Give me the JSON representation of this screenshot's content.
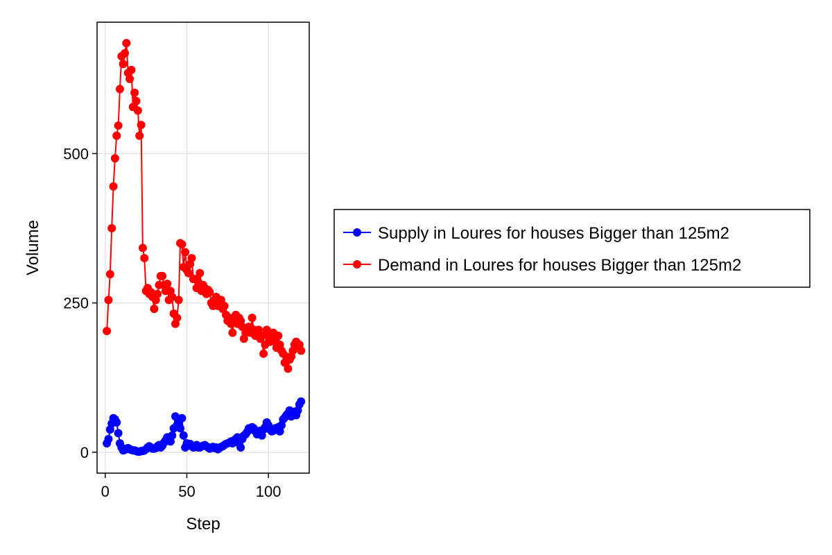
{
  "chart_data": {
    "type": "scatter",
    "xlabel": "Step",
    "ylabel": "Volume",
    "xlim": [
      -5,
      125
    ],
    "ylim": [
      -35,
      720
    ],
    "xticks": [
      0,
      50,
      100
    ],
    "yticks": [
      0,
      250,
      500
    ],
    "xtick_labels": [
      "0",
      "50",
      "100"
    ],
    "ytick_labels": [
      "0",
      "250",
      "500"
    ],
    "grid": true,
    "legend_position": "right",
    "series": [
      {
        "name": "Supply in Loures for houses Bigger than 125m2",
        "color": "#0000ff",
        "x": [
          1,
          2,
          3,
          4,
          5,
          6,
          7,
          8,
          9,
          10,
          11,
          12,
          13,
          14,
          15,
          16,
          17,
          18,
          19,
          20,
          21,
          22,
          23,
          24,
          25,
          26,
          27,
          28,
          29,
          30,
          31,
          32,
          33,
          34,
          35,
          36,
          37,
          38,
          39,
          40,
          41,
          42,
          43,
          44,
          45,
          46,
          47,
          48,
          49,
          50,
          51,
          52,
          53,
          54,
          55,
          56,
          57,
          58,
          59,
          60,
          61,
          62,
          63,
          64,
          65,
          66,
          67,
          68,
          69,
          70,
          71,
          72,
          73,
          74,
          75,
          76,
          77,
          78,
          79,
          80,
          81,
          82,
          83,
          84,
          85,
          86,
          87,
          88,
          89,
          90,
          91,
          92,
          93,
          94,
          95,
          96,
          97,
          98,
          99,
          100,
          101,
          102,
          103,
          104,
          105,
          106,
          107,
          108,
          109,
          110,
          111,
          112,
          113,
          114,
          115,
          116,
          117,
          118,
          119,
          120
        ],
        "y": [
          15,
          22,
          38,
          48,
          57,
          55,
          50,
          32,
          15,
          8,
          3,
          4,
          6,
          7,
          5,
          4,
          3,
          3,
          2,
          1,
          1,
          2,
          2,
          3,
          5,
          8,
          10,
          8,
          6,
          6,
          7,
          10,
          12,
          8,
          11,
          16,
          20,
          25,
          22,
          18,
          28,
          40,
          60,
          45,
          55,
          40,
          57,
          28,
          8,
          15,
          12,
          14,
          10,
          8,
          10,
          12,
          8,
          8,
          10,
          11,
          12,
          10,
          8,
          6,
          8,
          9,
          7,
          8,
          5,
          7,
          9,
          10,
          12,
          14,
          15,
          16,
          18,
          15,
          20,
          22,
          25,
          15,
          8,
          22,
          28,
          30,
          34,
          40,
          38,
          42,
          40,
          35,
          30,
          32,
          36,
          28,
          38,
          42,
          50,
          45,
          38,
          35,
          36,
          40,
          38,
          42,
          35,
          45,
          55,
          58,
          62,
          65,
          70,
          60,
          65,
          68,
          62,
          70,
          80,
          85
        ]
      },
      {
        "name": "Demand in Loures for houses Bigger than 125m2",
        "color": "#ff0000",
        "x": [
          1,
          2,
          3,
          4,
          5,
          6,
          7,
          8,
          9,
          10,
          11,
          12,
          13,
          14,
          15,
          16,
          17,
          18,
          19,
          20,
          21,
          22,
          23,
          24,
          25,
          26,
          27,
          28,
          29,
          30,
          31,
          32,
          33,
          34,
          35,
          36,
          37,
          38,
          39,
          40,
          41,
          42,
          43,
          44,
          45,
          46,
          47,
          48,
          49,
          50,
          51,
          52,
          53,
          54,
          55,
          56,
          57,
          58,
          59,
          60,
          61,
          62,
          63,
          64,
          65,
          66,
          67,
          68,
          69,
          70,
          71,
          72,
          73,
          74,
          75,
          76,
          77,
          78,
          79,
          80,
          81,
          82,
          83,
          84,
          85,
          86,
          87,
          88,
          89,
          90,
          91,
          92,
          93,
          94,
          95,
          96,
          97,
          98,
          99,
          100,
          101,
          102,
          103,
          104,
          105,
          106,
          107,
          108,
          109,
          110,
          111,
          112,
          113,
          114,
          115,
          116,
          117,
          118,
          119,
          120
        ],
        "y": [
          203,
          255,
          298,
          375,
          445,
          492,
          530,
          547,
          608,
          663,
          650,
          668,
          685,
          635,
          625,
          640,
          578,
          602,
          588,
          572,
          530,
          548,
          342,
          325,
          270,
          275,
          265,
          268,
          260,
          240,
          255,
          265,
          280,
          295,
          295,
          280,
          270,
          282,
          255,
          270,
          260,
          232,
          215,
          225,
          255,
          350,
          348,
          310,
          335,
          305,
          300,
          315,
          325,
          290,
          290,
          275,
          285,
          300,
          270,
          280,
          275,
          265,
          272,
          268,
          250,
          245,
          255,
          260,
          245,
          250,
          255,
          240,
          245,
          230,
          220,
          225,
          215,
          200,
          222,
          230,
          215,
          225,
          220,
          210,
          190,
          200,
          205,
          210,
          200,
          225,
          205,
          195,
          200,
          205,
          190,
          195,
          165,
          180,
          205,
          195,
          185,
          190,
          200,
          185,
          175,
          195,
          180,
          170,
          165,
          150,
          160,
          140,
          155,
          160,
          170,
          180,
          185,
          175,
          180,
          170
        ]
      }
    ]
  }
}
